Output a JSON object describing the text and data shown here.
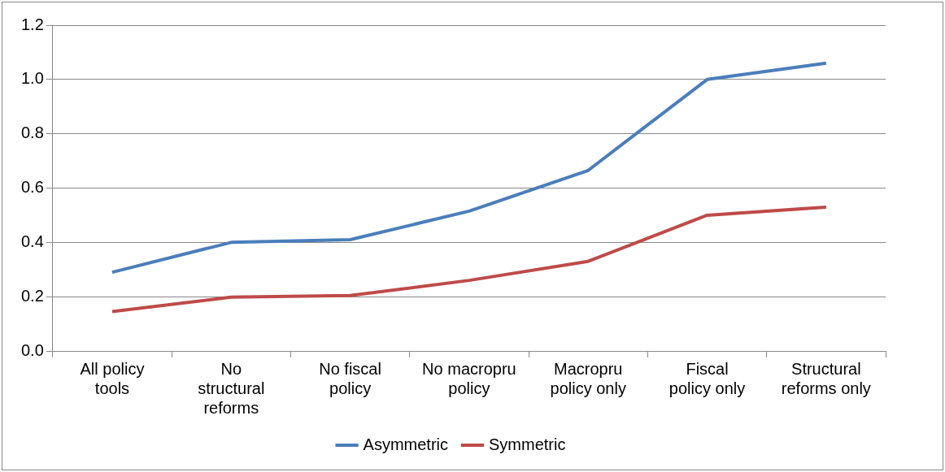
{
  "chart_data": {
    "type": "line",
    "categories": [
      "All policy tools",
      "No structural reforms",
      "No fiscal policy",
      "No macropru policy",
      "Macropru policy only",
      "Fiscal policy only",
      "Structural reforms only"
    ],
    "series": [
      {
        "name": "Asymmetric",
        "color": "#4a7ebb",
        "values": [
          0.29,
          0.4,
          0.41,
          0.515,
          0.665,
          1.0,
          1.06
        ]
      },
      {
        "name": "Symmetric",
        "color": "#be4b48",
        "values": [
          0.145,
          0.198,
          0.204,
          0.26,
          0.33,
          0.5,
          0.53
        ]
      }
    ],
    "ylim": [
      0,
      1.2
    ],
    "yticks": [
      {
        "value": 0,
        "label": "0.0"
      },
      {
        "value": 0.2,
        "label": "0.2"
      },
      {
        "value": 0.4,
        "label": "0.4"
      },
      {
        "value": 0.6,
        "label": "0.6"
      },
      {
        "value": 0.8,
        "label": "0.8"
      },
      {
        "value": 1.0,
        "label": "1.0"
      },
      {
        "value": 1.2,
        "label": "1.2"
      }
    ],
    "grid": "y",
    "legend": "bottom",
    "marker": "none",
    "line_style": "solid"
  }
}
